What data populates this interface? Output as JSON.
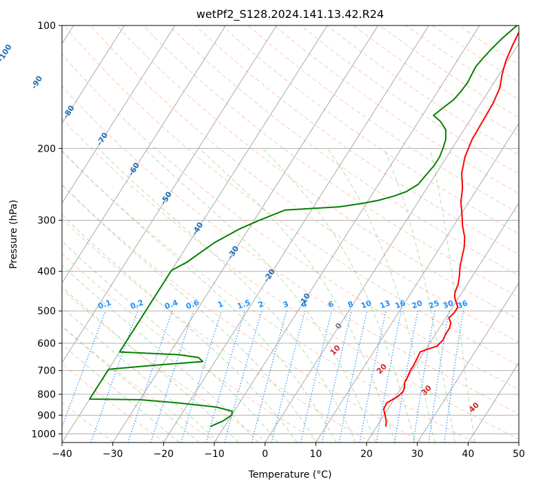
{
  "chart_data": {
    "type": "line",
    "title": "wetPf2_S128.2024.141.13.42.R24",
    "xlabel": "Temperature (°C)",
    "ylabel": "Pressure (hPa)",
    "xlim": [
      -40,
      50
    ],
    "ylim": [
      1050,
      100
    ],
    "y_scale": "log",
    "x_ticks": [
      -40,
      -30,
      -20,
      -10,
      0,
      10,
      20,
      30,
      40,
      50
    ],
    "y_ticks": [
      100,
      200,
      300,
      400,
      500,
      600,
      700,
      800,
      900,
      1000
    ],
    "grid": true,
    "colors": {
      "temperature": "#ff0000",
      "dewpoint": "#008000",
      "isotherm": "#aaaaaa",
      "dry_adiabat": "#ff9966",
      "moist_adiabat": "#66bb66",
      "mixing_ratio": "#1e90ff",
      "mixing_label": "#1e90ff",
      "isotherm_label": "#1f6fb4",
      "adiabat_label": "#d62728"
    },
    "isotherm_labels": [
      {
        "t": -100,
        "p": 117,
        "label": "-100"
      },
      {
        "t": -90,
        "p": 138,
        "label": "-90"
      },
      {
        "t": -80,
        "p": 163,
        "label": "-80"
      },
      {
        "t": -70,
        "p": 190,
        "label": "-70"
      },
      {
        "t": -60,
        "p": 225,
        "label": "-60"
      },
      {
        "t": -50,
        "p": 265,
        "label": "-50"
      },
      {
        "t": -40,
        "p": 315,
        "label": "-40"
      },
      {
        "t": -30,
        "p": 360,
        "label": "-30"
      },
      {
        "t": -20,
        "p": 410,
        "label": "-20"
      },
      {
        "t": -10,
        "p": 470,
        "label": "-10"
      },
      {
        "t": 0,
        "p": 545,
        "label": "0"
      }
    ],
    "mixing_ratio_labels": [
      "0.1",
      "0.2",
      "0.4",
      "0.6",
      "1",
      "1.5",
      "2",
      "3",
      "4",
      "6",
      "8",
      "10",
      "13",
      "16",
      "20",
      "25",
      "30",
      "36"
    ],
    "moist_adiabat_labels": [
      "10",
      "20",
      "30",
      "40"
    ],
    "series": [
      {
        "key": "temperature",
        "color": "#ff0000",
        "points": [
          [
            21.8,
            960
          ],
          [
            21.2,
            930
          ],
          [
            20.2,
            900
          ],
          [
            19.2,
            870
          ],
          [
            19.0,
            840
          ],
          [
            20.4,
            810
          ],
          [
            20.8,
            790
          ],
          [
            20.6,
            770
          ],
          [
            20.0,
            750
          ],
          [
            19.9,
            730
          ],
          [
            19.6,
            700
          ],
          [
            19.6,
            680
          ],
          [
            19.4,
            650
          ],
          [
            19.2,
            630
          ],
          [
            20.4,
            620
          ],
          [
            21.8,
            610
          ],
          [
            22.2,
            590
          ],
          [
            22.0,
            570
          ],
          [
            22.0,
            550
          ],
          [
            21.6,
            535
          ],
          [
            20.6,
            520
          ],
          [
            21.0,
            505
          ],
          [
            21.0,
            490
          ],
          [
            20.4,
            480
          ],
          [
            19.6,
            470
          ],
          [
            19.0,
            460
          ],
          [
            18.6,
            450
          ],
          [
            18.2,
            430
          ],
          [
            17.4,
            410
          ],
          [
            16.4,
            390
          ],
          [
            15.6,
            370
          ],
          [
            14.8,
            350
          ],
          [
            13.6,
            330
          ],
          [
            11.8,
            310
          ],
          [
            10.2,
            290
          ],
          [
            8.4,
            270
          ],
          [
            7.0,
            250
          ],
          [
            5.0,
            230
          ],
          [
            3.6,
            210
          ],
          [
            2.8,
            190
          ],
          [
            2.6,
            170
          ],
          [
            2.4,
            155
          ],
          [
            1.8,
            142
          ],
          [
            0.6,
            132
          ],
          [
            -0.4,
            122
          ],
          [
            -1.0,
            112
          ],
          [
            -1.4,
            104
          ],
          [
            -1.2,
            100
          ]
        ]
      },
      {
        "key": "dewpoint",
        "color": "#008000",
        "points": [
          [
            -12.8,
            960
          ],
          [
            -11.0,
            930
          ],
          [
            -10.0,
            900
          ],
          [
            -10.4,
            880
          ],
          [
            -14.0,
            860
          ],
          [
            -22.0,
            840
          ],
          [
            -30.0,
            825
          ],
          [
            -40.0,
            822
          ],
          [
            -40.0,
            695
          ],
          [
            -32.0,
            680
          ],
          [
            -22.4,
            665
          ],
          [
            -23.8,
            650
          ],
          [
            -28.0,
            640
          ],
          [
            -40.0,
            630
          ],
          [
            -40.0,
            398
          ],
          [
            -38.0,
            380
          ],
          [
            -36.4,
            358
          ],
          [
            -35.0,
            340
          ],
          [
            -31.8,
            315
          ],
          [
            -29.0,
            300
          ],
          [
            -25.2,
            283
          ],
          [
            -15.0,
            278
          ],
          [
            -11.0,
            273
          ],
          [
            -8.0,
            268
          ],
          [
            -5.6,
            262
          ],
          [
            -3.6,
            255
          ],
          [
            -2.2,
            245
          ],
          [
            -1.8,
            232
          ],
          [
            -1.4,
            220
          ],
          [
            -1.4,
            210
          ],
          [
            -1.8,
            200
          ],
          [
            -2.4,
            190
          ],
          [
            -3.6,
            180
          ],
          [
            -5.6,
            172
          ],
          [
            -7.8,
            166
          ],
          [
            -7.0,
            160
          ],
          [
            -5.8,
            152
          ],
          [
            -5.4,
            145
          ],
          [
            -5.2,
            138
          ],
          [
            -5.4,
            132
          ],
          [
            -5.6,
            126
          ],
          [
            -5.2,
            120
          ],
          [
            -4.8,
            115
          ],
          [
            -4.0,
            108
          ],
          [
            -3.0,
            102
          ],
          [
            -2.6,
            100
          ]
        ]
      }
    ]
  }
}
